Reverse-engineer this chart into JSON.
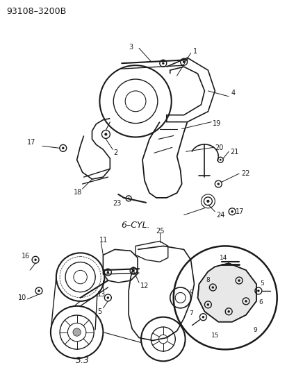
{
  "title_code": "93108–3200B",
  "bg_color": "#ffffff",
  "fg_color": "#1a1a1a",
  "fig_width": 4.14,
  "fig_height": 5.33,
  "dpi": 100,
  "label_6cyl": "6–CYL.",
  "label_33": "3.3"
}
